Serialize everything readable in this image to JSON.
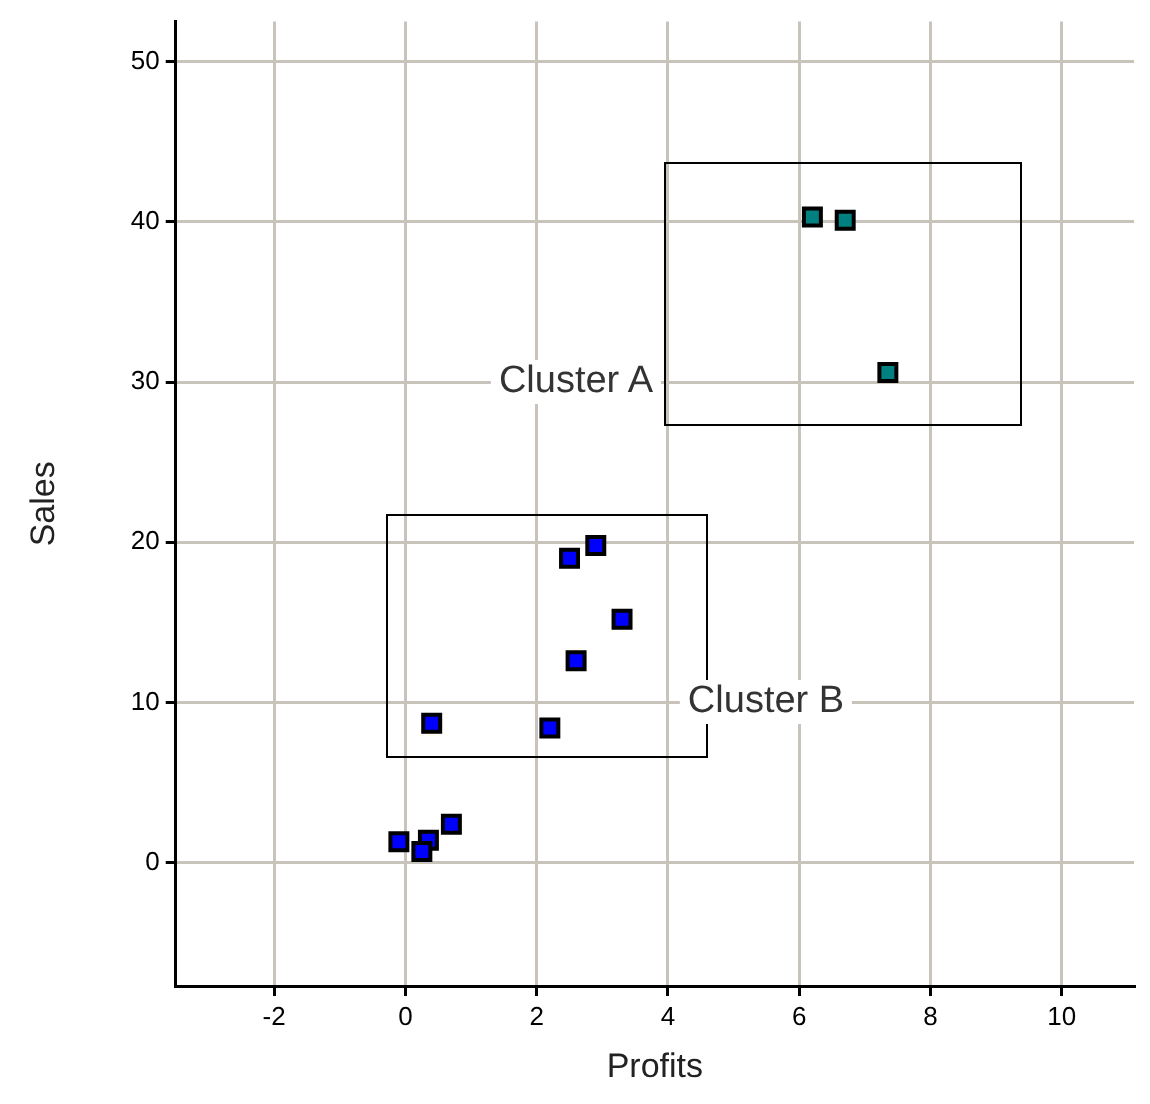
{
  "chart_data": {
    "type": "scatter",
    "xlabel": "Profits",
    "ylabel": "Sales",
    "xlim": [
      -3.5,
      11.1
    ],
    "ylim": [
      -7.7,
      52.5
    ],
    "xticks": [
      -2,
      0,
      2,
      4,
      6,
      8,
      10
    ],
    "yticks": [
      0,
      10,
      20,
      30,
      40,
      50
    ],
    "grid": true,
    "legend": false,
    "marker": "square",
    "series": [
      {
        "color": "#008080",
        "x": [
          6.2,
          6.7,
          7.35
        ],
        "values": [
          40.3,
          40.1,
          30.6
        ]
      },
      {
        "color": "#0000ff",
        "x": [
          2.5,
          2.9,
          3.3,
          2.6,
          0.4,
          2.2,
          0.7,
          -0.1,
          0.35,
          0.25
        ],
        "values": [
          19.0,
          19.8,
          15.2,
          12.6,
          8.7,
          8.4,
          2.4,
          1.3,
          1.4,
          0.7
        ]
      }
    ],
    "annotations": [
      "Cluster A",
      "Cluster B"
    ]
  }
}
